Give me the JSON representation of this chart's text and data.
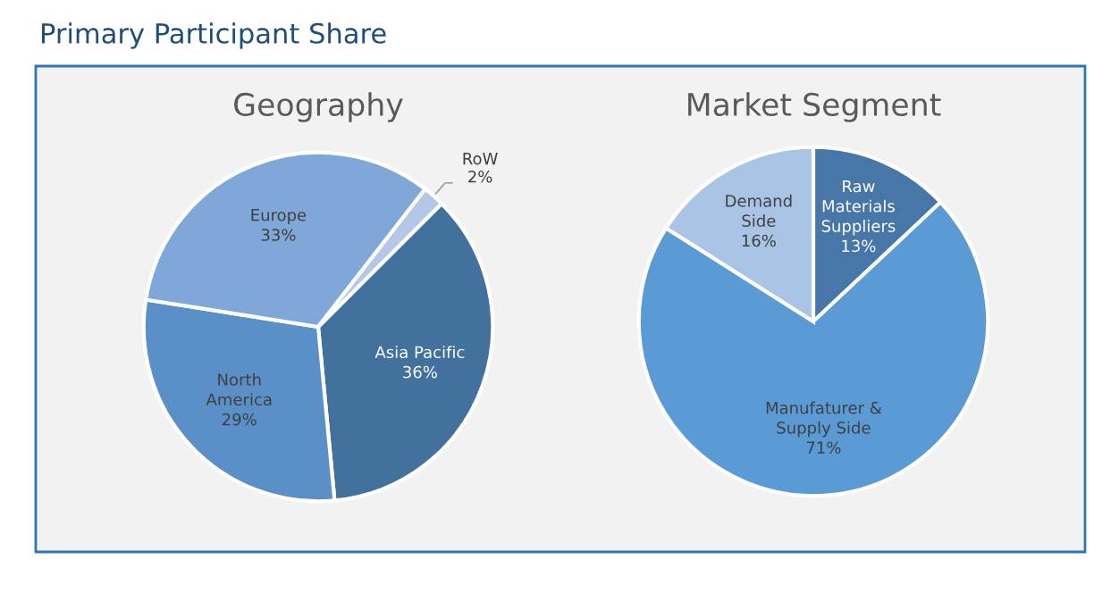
{
  "chart_data": [
    {
      "type": "pie",
      "title": "Geography",
      "annotations": [
        "Primary Participant Share"
      ],
      "categories": [
        "Asia Pacific",
        "North\nAmerica",
        "Europe",
        "RoW"
      ],
      "values": [
        36,
        29,
        33,
        2
      ],
      "value_labels": [
        "36%",
        "29%",
        "33%",
        "2%"
      ],
      "colors": [
        "#41719c",
        "#5b8fc8",
        "#7fa8d8",
        "#b4c7e7"
      ]
    },
    {
      "type": "pie",
      "title": "Market Segment",
      "categories": [
        "Raw\nMaterials\nSuppliers",
        "Manufaturer &\nSupply Side",
        "Demand\nSide"
      ],
      "values": [
        13,
        71,
        16
      ],
      "value_labels": [
        "13%",
        "71%",
        "16%"
      ],
      "colors": [
        "#4677a8",
        "#5b9bd5",
        "#a9c4e5"
      ]
    }
  ]
}
